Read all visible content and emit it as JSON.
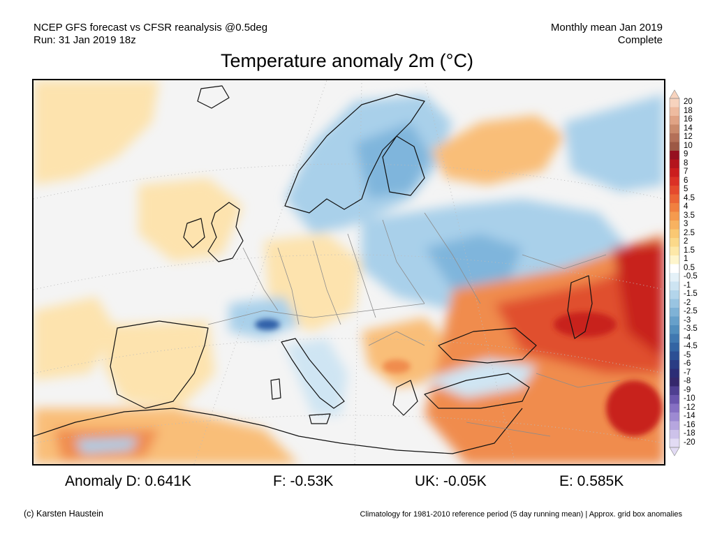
{
  "header": {
    "line1_left": "NCEP GFS forecast vs CFSR reanalysis @0.5deg",
    "line2_left": "Run: 31 Jan 2019 18z",
    "line1_right": "Monthly mean Jan 2019",
    "line2_right": "Complete"
  },
  "title": "Temperature anomaly 2m (°C)",
  "colorbar": {
    "labels": [
      "20",
      "18",
      "16",
      "14",
      "12",
      "10",
      "9",
      "8",
      "7",
      "6",
      "5",
      "4.5",
      "4",
      "3.5",
      "3",
      "2.5",
      "2",
      "1.5",
      "1",
      "0.5",
      "-0.5",
      "-1",
      "-1.5",
      "-2",
      "-2.5",
      "-3",
      "-3.5",
      "-4",
      "-4.5",
      "-5",
      "-6",
      "-7",
      "-8",
      "-9",
      "-10",
      "-12",
      "-14",
      "-16",
      "-18",
      "-20"
    ],
    "colors": [
      "#f7d3be",
      "#eebba0",
      "#e0a385",
      "#ca8a6c",
      "#b47058",
      "#9d5945",
      "#961020",
      "#b4141d",
      "#cb1d1e",
      "#db3126",
      "#e54a2d",
      "#ec6535",
      "#f1803f",
      "#f59a4e",
      "#f8b260",
      "#fac873",
      "#fbd98a",
      "#fde8a8",
      "#fef5cc",
      "#ffffff",
      "#e4f1f8",
      "#cde4f2",
      "#b3d5eb",
      "#99c4e1",
      "#7fb2d6",
      "#67a0ca",
      "#528ebd",
      "#4078b0",
      "#3364a3",
      "#2c4f94",
      "#2a3c84",
      "#2c2d76",
      "#35286c",
      "#4f3f91",
      "#6a55ad",
      "#8670c3",
      "#9d8ad2",
      "#b6a6df",
      "#cdc2ea",
      "#e2dbf4"
    ]
  },
  "map": {
    "colors": {
      "sea_neutral": "#f4f4f4",
      "cold_light": "#cfe5f3",
      "cold_mid": "#a9d0ea",
      "cold_strong": "#7fb5dc",
      "cold_deep": "#2f5fa8",
      "warm_light": "#fde3ae",
      "warm_mid": "#f9be78",
      "warm_strong": "#f08c4e",
      "hot": "#e0502e",
      "hot_deep": "#c8221e",
      "coast": "#111111",
      "border": "#8c8c8c"
    }
  },
  "stats": {
    "d": "Anomaly D: 0.641K",
    "f": "F: -0.53K",
    "uk": "UK: -0.05K",
    "e": "E: 0.585K"
  },
  "footer": {
    "left": "(c) Karsten Haustein",
    "right": "Climatology for 1981-2010 reference period (5 day running mean) | Approx. grid box anomalies"
  }
}
